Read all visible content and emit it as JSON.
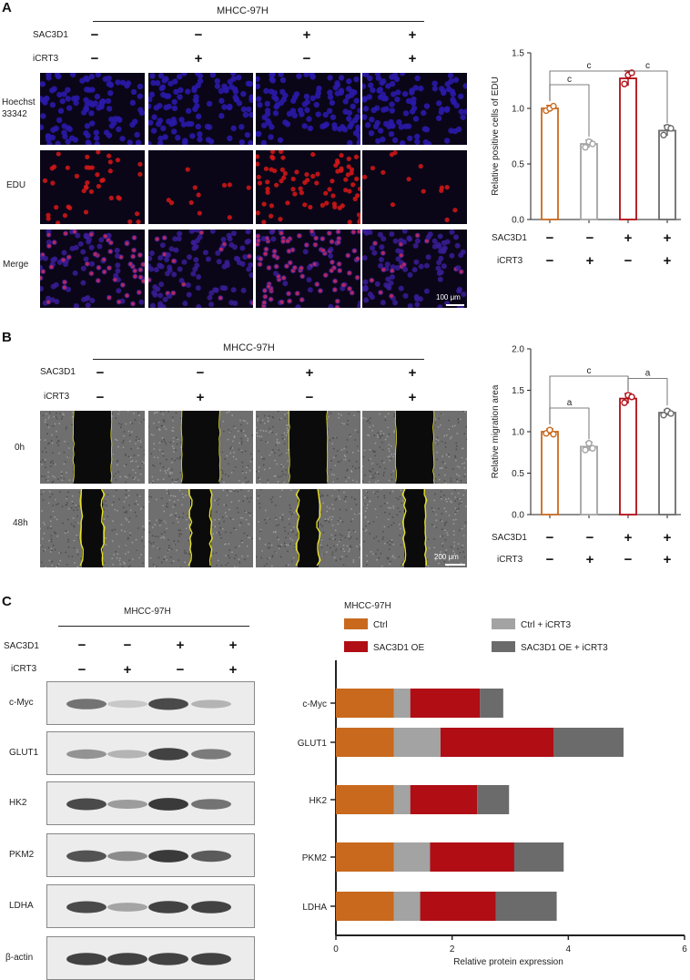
{
  "panels": {
    "a": "A",
    "b": "B",
    "c": "C"
  },
  "cell_line": "MHCC-97H",
  "treatments": {
    "sac": "SAC3D1",
    "icrt": "iCRT3"
  },
  "signs": {
    "minus": "−",
    "plus": "+"
  },
  "sign_pattern": {
    "sac": [
      "−",
      "−",
      "+",
      "+"
    ],
    "icrt": [
      "−",
      "+",
      "−",
      "+"
    ]
  },
  "panelA": {
    "row_labels": {
      "hoechst": "Hoechst 33342",
      "edu": "EDU",
      "merge": "Merge"
    },
    "scale_bar": "100 μm",
    "colors": {
      "hoechst": "#2a1aa8",
      "edu": "#d81818",
      "merge": "#6a2aa0"
    }
  },
  "panelB": {
    "row_labels": {
      "t0": "0h",
      "t48": "48h"
    },
    "scale_bar": "200 μm"
  },
  "panelC": {
    "proteins": [
      "c-Myc",
      "GLUT1",
      "HK2",
      "PKM2",
      "LDHA",
      "β-actin"
    ]
  },
  "colors": {
    "ctrl": "#c8691e",
    "icrt": "#a3a3a3",
    "oe": "#b00d15",
    "oe_icrt": "#6b6b6b"
  },
  "chart_data": [
    {
      "type": "bar",
      "categories": [
        "1",
        "2",
        "3",
        "4"
      ],
      "values": [
        1.0,
        0.68,
        1.27,
        0.8
      ],
      "points": [
        [
          0.98,
          1.0,
          1.02
        ],
        [
          0.65,
          0.7,
          0.68
        ],
        [
          1.22,
          1.3,
          1.32
        ],
        [
          0.76,
          0.83,
          0.82
        ]
      ],
      "ylabel": "Relative positive cells of EDU",
      "ylim": [
        0,
        1.5
      ],
      "yticks": [
        "0.0",
        "0.5",
        "1.0",
        "1.5"
      ],
      "significance": [
        {
          "from": 1,
          "to": 2,
          "label": "c"
        },
        {
          "from": 1,
          "to": 3,
          "label": "c"
        },
        {
          "from": 3,
          "to": 4,
          "label": "c"
        }
      ]
    },
    {
      "type": "bar",
      "categories": [
        "1",
        "2",
        "3",
        "4"
      ],
      "values": [
        1.0,
        0.82,
        1.4,
        1.23
      ],
      "points": [
        [
          0.98,
          1.02,
          0.97
        ],
        [
          0.78,
          0.86,
          0.8
        ],
        [
          1.35,
          1.44,
          1.42
        ],
        [
          1.2,
          1.25,
          1.22
        ]
      ],
      "ylabel": "Relative migration area",
      "ylim": [
        0,
        2.0
      ],
      "yticks": [
        "0.0",
        "0.5",
        "1.0",
        "1.5",
        "2.0"
      ],
      "significance": [
        {
          "from": 1,
          "to": 2,
          "label": "a"
        },
        {
          "from": 1,
          "to": 3,
          "label": "c"
        },
        {
          "from": 3,
          "to": 4,
          "label": "a"
        }
      ]
    },
    {
      "type": "bar",
      "orientation": "horizontal-stacked",
      "title": "MHCC-97H",
      "categories": [
        "c-Myc",
        "GLUT1",
        "HK2",
        "PKM2",
        "LDHA"
      ],
      "series": [
        {
          "name": "Ctrl",
          "values": [
            1.0,
            1.0,
            1.0,
            1.0,
            1.0
          ]
        },
        {
          "name": "Ctrl + iCRT3",
          "values": [
            0.28,
            0.8,
            0.28,
            0.62,
            0.45
          ]
        },
        {
          "name": "SAC3D1 OE",
          "values": [
            1.2,
            1.95,
            1.15,
            1.45,
            1.3
          ]
        },
        {
          "name": "SAC3D1 OE + iCRT3",
          "values": [
            0.4,
            1.2,
            0.55,
            0.85,
            1.05
          ]
        }
      ],
      "xlabel": "Relative protein expression",
      "xlim": [
        0,
        6
      ],
      "xticks": [
        "0",
        "2",
        "4",
        "6"
      ]
    }
  ]
}
